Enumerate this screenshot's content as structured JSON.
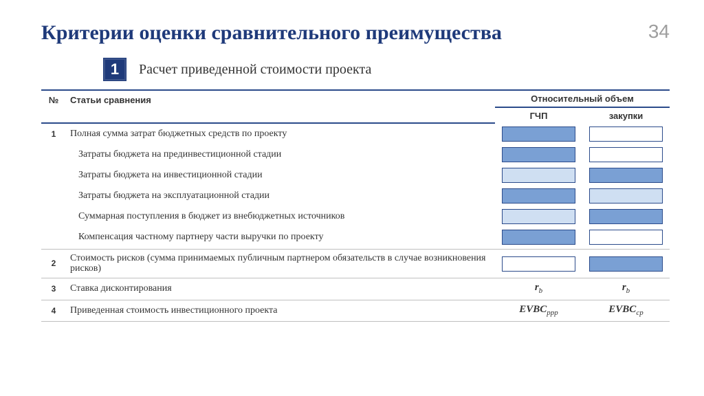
{
  "header": {
    "title": "Критерии оценки сравнительного преимущества",
    "page_number": "34",
    "title_color": "#1f3a7a"
  },
  "section": {
    "badge_number": "1",
    "title": "Расчет приведенной стоимости проекта",
    "badge_bg": "#1f3a7a"
  },
  "table": {
    "col_num": "№",
    "col_articles": "Статьи сравнения",
    "col_volume": "Относительный объем",
    "sub_left": "ГЧП",
    "sub_right": "закупки",
    "accent_color": "#2a4a8a",
    "colors": {
      "dark": "#7aa0d4",
      "light": "#cfdff2",
      "white": "#ffffff"
    },
    "rows": [
      {
        "num": "1",
        "label": "Полная сумма затрат бюджетных средств по проекту",
        "left": "dark",
        "right": "white",
        "indent": false,
        "sep_after": false
      },
      {
        "num": "",
        "label": "Затраты бюджета на прединвестиционной стадии",
        "left": "dark",
        "right": "white",
        "indent": true,
        "sep_after": false
      },
      {
        "num": "",
        "label": "Затраты бюджета на инвестиционной стадии",
        "left": "light",
        "right": "dark",
        "indent": true,
        "sep_after": false
      },
      {
        "num": "",
        "label": "Затраты бюджета на эксплуатационной стадии",
        "left": "dark",
        "right": "light",
        "indent": true,
        "sep_after": false
      },
      {
        "num": "",
        "label": "Суммарная поступления в бюджет из внебюджетных источников",
        "left": "light",
        "right": "dark",
        "indent": true,
        "sep_after": false
      },
      {
        "num": "",
        "label": "Компенсация частному партнеру части выручки по проекту",
        "left": "dark",
        "right": "white",
        "indent": true,
        "sep_after": true
      },
      {
        "num": "2",
        "label": "Стоимость рисков (сумма принимаемых публичным партнером обязательств в случае возникновения рисков)",
        "left": "white",
        "right": "dark",
        "indent": false,
        "sep_after": true
      }
    ],
    "formula_rows": [
      {
        "num": "3",
        "label": "Ставка дисконтирования",
        "left_base": "r",
        "left_sub": "b",
        "right_base": "r",
        "right_sub": "b",
        "sep_after": true
      },
      {
        "num": "4",
        "label": "Приведенная стоимость инвестиционного проекта",
        "left_base": "EVBC",
        "left_sub": "ppp",
        "right_base": "EVBC",
        "right_sub": "cp",
        "sep_after": true
      }
    ]
  }
}
